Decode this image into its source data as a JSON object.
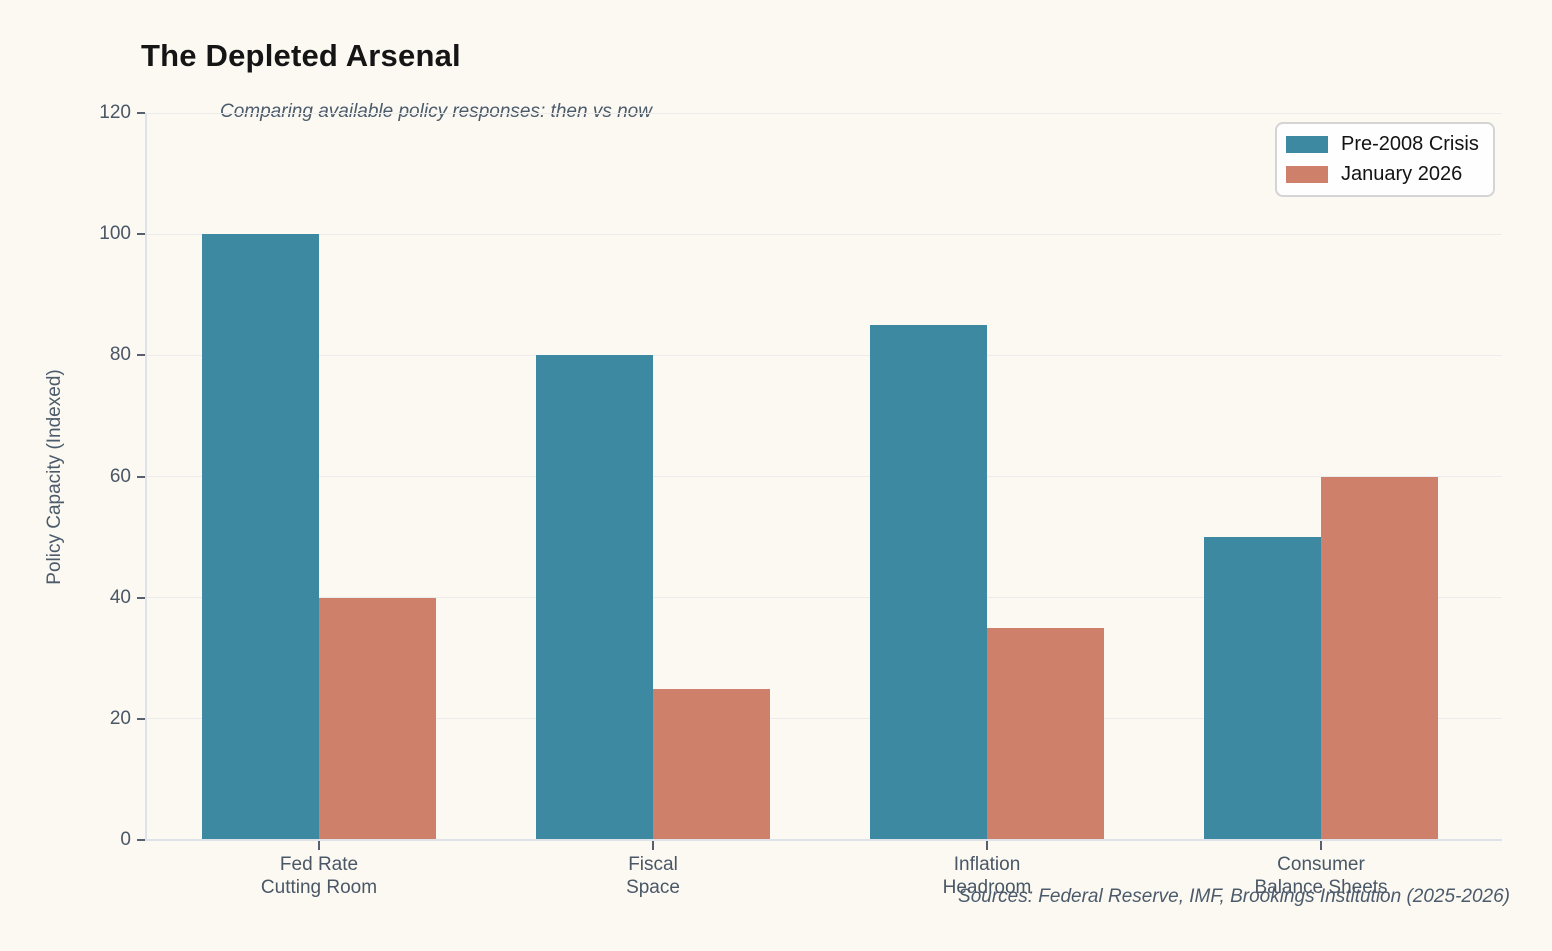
{
  "chart": {
    "title": "The Depleted Arsenal",
    "subtitle": "Comparing available policy responses: then vs now",
    "source_note": "Sources: Federal Reserve, IMF, Brookings Institution (2025-2026)",
    "colors": {
      "background": "#fbf9f2",
      "title_text": "#151515",
      "axis_text": "#4a5766",
      "muted_text": "#4c5b6b",
      "spine": "#dde3e9",
      "gridline": "#ececec",
      "tick_mark": "#57606e",
      "legend_border": "#d4d4d4",
      "legend_bg": "#fefefe",
      "legend_text": "#131313",
      "series_teal": "#3d89a2",
      "series_salmon": "#cf806b"
    }
  },
  "chart_data": {
    "type": "bar",
    "title": "The Depleted Arsenal",
    "subtitle": "Comparing available policy responses: then vs now",
    "categories": [
      "Fed Rate\nCutting Room",
      "Fiscal\nSpace",
      "Inflation\nHeadroom",
      "Consumer\nBalance Sheets"
    ],
    "series": [
      {
        "name": "Pre-2008 Crisis",
        "color": "#3d89a2",
        "values": [
          100,
          80,
          85,
          50
        ]
      },
      {
        "name": "January 2026",
        "color": "#cf806b",
        "values": [
          40,
          25,
          35,
          60
        ]
      }
    ],
    "xlabel": "",
    "ylabel": "Policy Capacity (Indexed)",
    "ylim": [
      0,
      120
    ],
    "yticks": [
      0,
      20,
      40,
      60,
      80,
      100,
      120
    ],
    "ytick_step": 20,
    "grid": true,
    "legend_position": "upper right",
    "annotations": [
      "Sources: Federal Reserve, IMF, Brookings Institution (2025-2026)"
    ]
  }
}
